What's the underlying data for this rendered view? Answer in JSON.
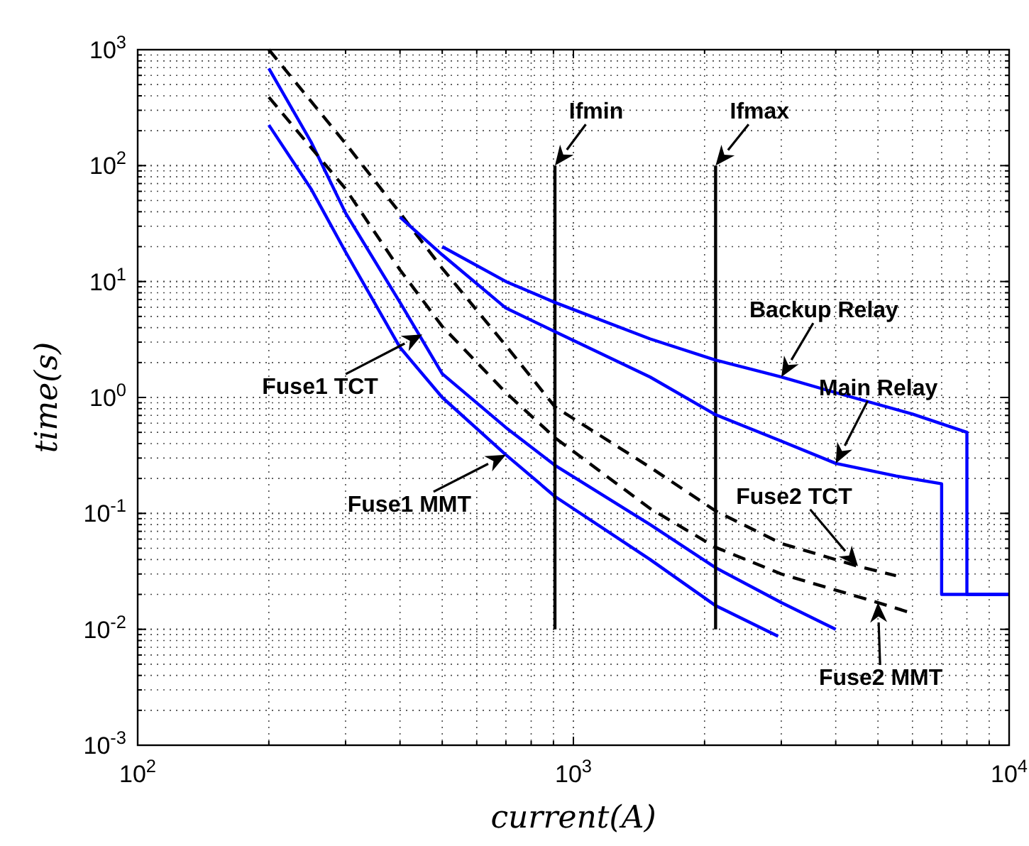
{
  "chart_data": {
    "type": "line",
    "xlabel": "current(A)",
    "ylabel": "time(s)",
    "log": "xy",
    "grid": true,
    "marker": "none",
    "xlim": [
      100,
      10000
    ],
    "xticks": [
      {
        "value": 100,
        "label": "10$^{2}$"
      },
      {
        "value": 1000,
        "label": "10$^{3}$"
      },
      {
        "value": 10000,
        "label": "10$^{4}$"
      }
    ],
    "ylim": [
      0.001,
      1000
    ],
    "yticks": [
      {
        "value": 0.001,
        "label": "10$^{-3}$"
      },
      {
        "value": 0.01,
        "label": "10$^{-2}$"
      },
      {
        "value": 0.1,
        "label": "10$^{-1}$"
      },
      {
        "value": 1,
        "label": "10$^{0}$"
      },
      {
        "value": 10,
        "label": "10$^{1}$"
      },
      {
        "value": 100,
        "label": "10$^{2}$"
      },
      {
        "value": 1000,
        "label": "10$^{3}$"
      }
    ],
    "series": [
      {
        "color": "#0000ff",
        "line_style": "solid",
        "x": [
          200,
          250,
          300,
          400,
          500,
          700,
          907,
          1500,
          2120,
          2950
        ],
        "values": [
          224,
          63,
          18,
          2.7,
          1.0,
          0.32,
          0.14,
          0.04,
          0.016,
          0.0087
        ]
      },
      {
        "color": "#0000ff",
        "line_style": "solid",
        "x": [
          200,
          250,
          300,
          400,
          500,
          700,
          907,
          1500,
          2120,
          3000,
          4000
        ],
        "values": [
          690,
          160,
          39,
          6.6,
          1.6,
          0.55,
          0.26,
          0.08,
          0.034,
          0.017,
          0.01
        ]
      },
      {
        "color": "#000000",
        "line_style": "dashed",
        "x": [
          200,
          300,
          400,
          500,
          700,
          907,
          1500,
          2120,
          3000,
          4500,
          5500
        ],
        "values": [
          1000,
          155,
          39,
          13,
          2.8,
          0.83,
          0.25,
          0.105,
          0.055,
          0.035,
          0.029
        ]
      },
      {
        "color": "#000000",
        "line_style": "dashed",
        "x": [
          200,
          300,
          400,
          500,
          700,
          907,
          1500,
          2120,
          3000,
          5000,
          5900
        ],
        "values": [
          390,
          63,
          12.6,
          4.1,
          1.1,
          0.45,
          0.11,
          0.051,
          0.03,
          0.017,
          0.014
        ]
      },
      {
        "color": "#000000",
        "line_style": "solid",
        "x": [
          907,
          907
        ],
        "values": [
          0.01,
          100
        ]
      },
      {
        "color": "#000000",
        "line_style": "solid",
        "x": [
          2120,
          2120
        ],
        "values": [
          0.01,
          100
        ]
      },
      {
        "color": "#0000ff",
        "line_style": "solid",
        "x": [
          400,
          500,
          700,
          907,
          1500,
          2120,
          3000,
          4000,
          5500,
          7000,
          7000,
          10000
        ],
        "values": [
          36,
          17,
          5.9,
          3.7,
          1.5,
          0.71,
          0.42,
          0.27,
          0.21,
          0.18,
          0.02,
          0.02
        ]
      },
      {
        "color": "#0000ff",
        "line_style": "solid",
        "x": [
          500,
          700,
          907,
          1500,
          2120,
          3000,
          4000,
          6000,
          8000,
          8000,
          10000
        ],
        "values": [
          20,
          10,
          6.6,
          3.2,
          2.1,
          1.5,
          1.1,
          0.72,
          0.5,
          0.02,
          0.02
        ]
      }
    ],
    "annotations": [
      {
        "text": "Fuse1 MMT",
        "x": 700,
        "y": 0.32
      },
      {
        "text": "Fuse1 TCT",
        "x": 450,
        "y": 3.5
      },
      {
        "text": "Fuse2 TCT",
        "x": 4500,
        "y": 0.035
      },
      {
        "text": "Fuse2 MMT",
        "x": 5000,
        "y": 0.017
      },
      {
        "text": "Ifmin",
        "x": 907,
        "y": 100
      },
      {
        "text": "Ifmax",
        "x": 2120,
        "y": 100
      },
      {
        "text": "Main Relay",
        "x": 4000,
        "y": 0.27
      },
      {
        "text": "Backup Relay",
        "x": 3000,
        "y": 1.5
      }
    ]
  }
}
